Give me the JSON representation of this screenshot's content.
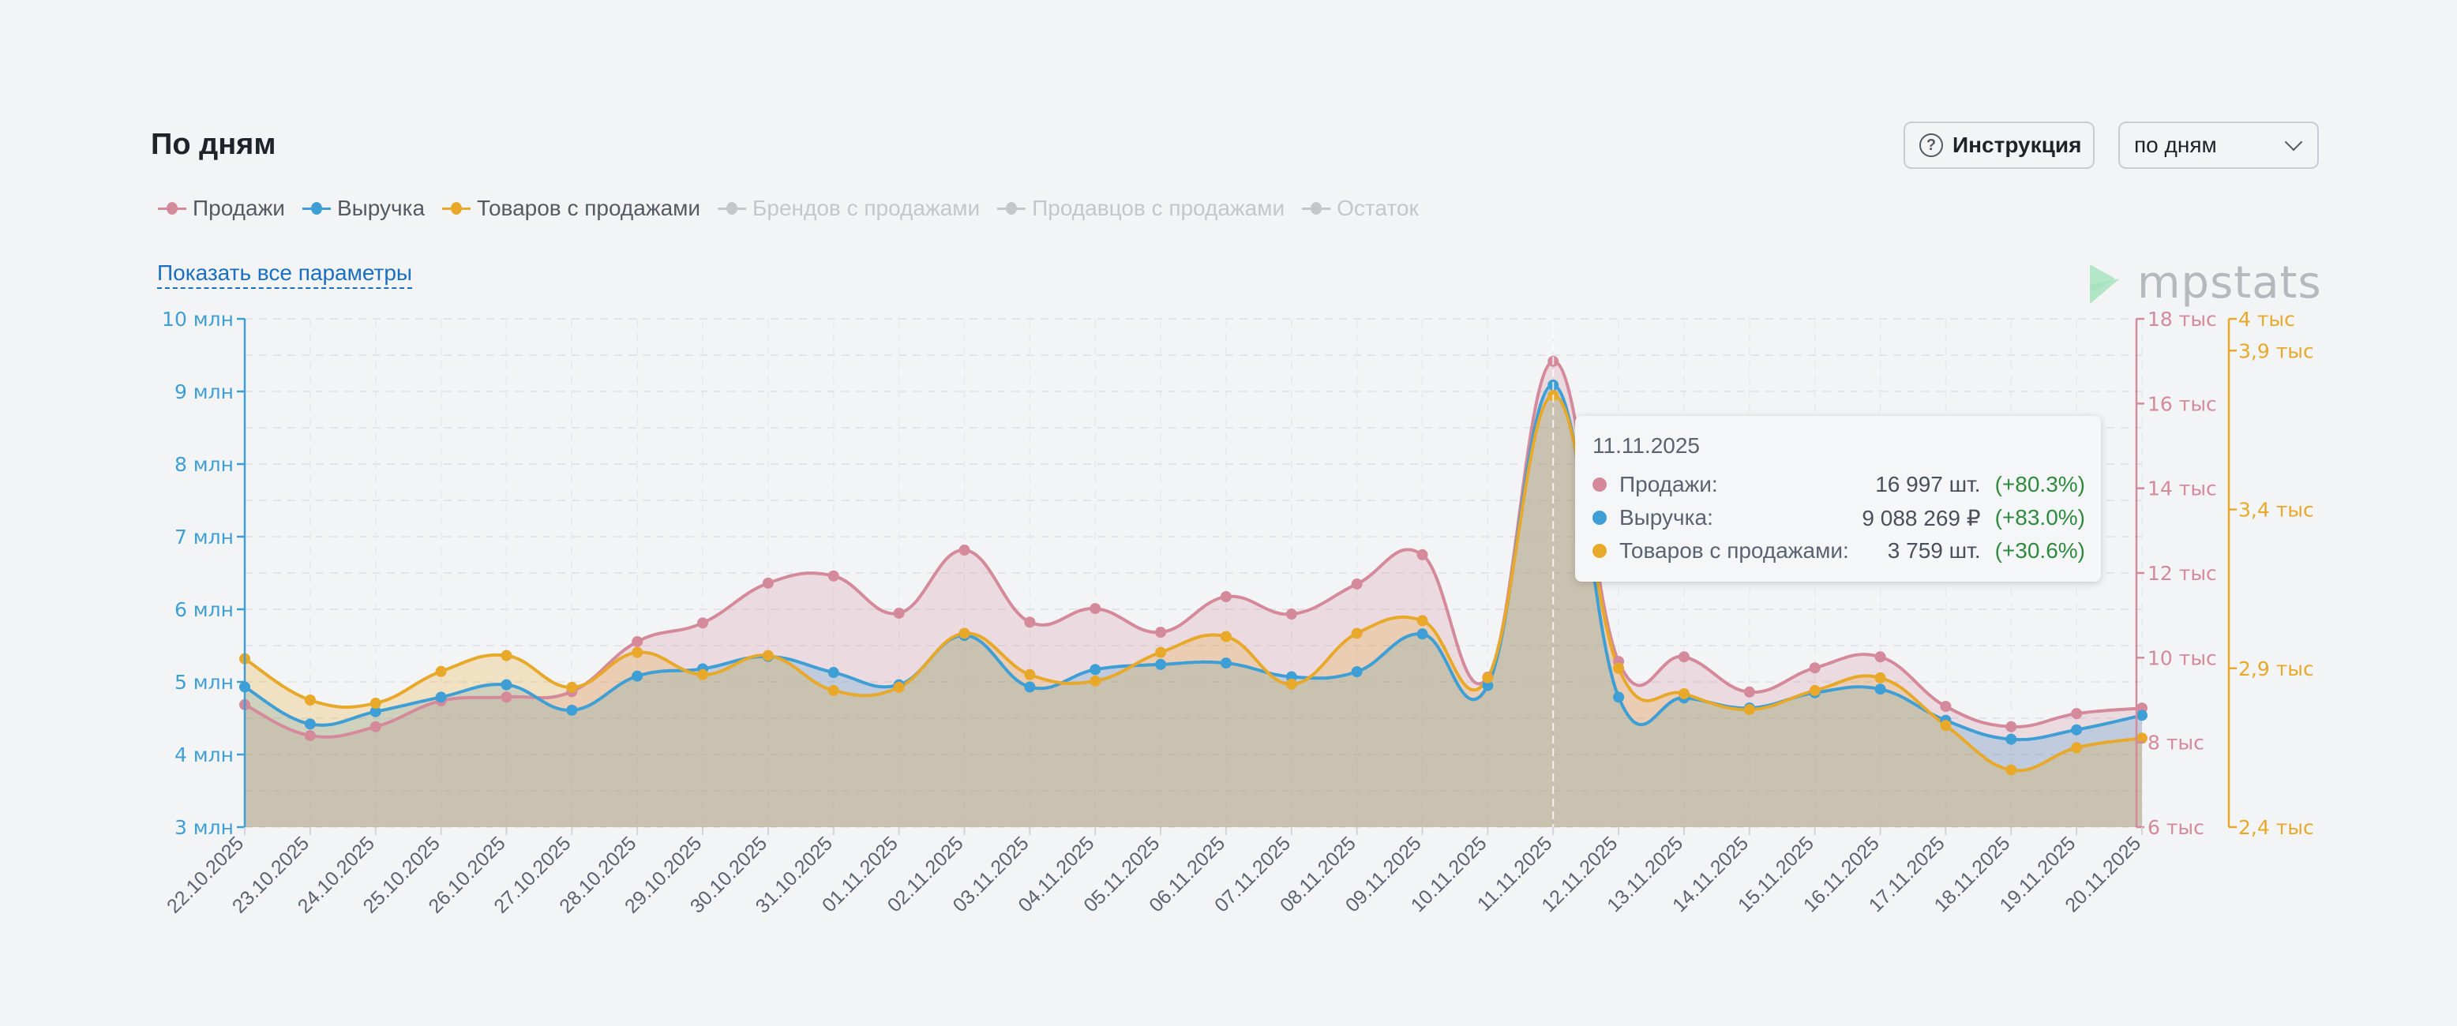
{
  "header": {
    "title": "По дням",
    "help_button": "Инструкция",
    "period_select": "по дням",
    "show_all_link": "Показать все параметры",
    "logo_text": "mpstats"
  },
  "legend": [
    {
      "label": "Продажи",
      "color": "#d48a9b",
      "active": true
    },
    {
      "label": "Выручка",
      "color": "#3e9fd6",
      "active": true
    },
    {
      "label": "Товаров с продажами",
      "color": "#e8a92a",
      "active": true
    },
    {
      "label": "Брендов с продажами",
      "color": "#c4c6ca",
      "active": false
    },
    {
      "label": "Продавцов с продажами",
      "color": "#c4c6ca",
      "active": false
    },
    {
      "label": "Остаток",
      "color": "#c4c6ca",
      "active": false
    }
  ],
  "tooltip": {
    "date": "11.11.2025",
    "rows": [
      {
        "name": "Продажи:",
        "value": "16 997 шт.",
        "change": "(+80.3%)",
        "color": "#d48a9b"
      },
      {
        "name": "Выручка:",
        "value": "9 088 269 ₽",
        "change": "(+83.0%)",
        "color": "#3e9fd6"
      },
      {
        "name": "Товаров с продажами:",
        "value": "3 759 шт.",
        "change": "(+30.6%)",
        "color": "#e8a92a"
      }
    ]
  },
  "chart_data": {
    "type": "area",
    "title": "По дням",
    "x": [
      "22.10.2025",
      "23.10.2025",
      "24.10.2025",
      "25.10.2025",
      "26.10.2025",
      "27.10.2025",
      "28.10.2025",
      "29.10.2025",
      "30.10.2025",
      "31.10.2025",
      "01.11.2025",
      "02.11.2025",
      "03.11.2025",
      "04.11.2025",
      "05.11.2025",
      "06.11.2025",
      "07.11.2025",
      "08.11.2025",
      "09.11.2025",
      "10.11.2025",
      "11.11.2025",
      "12.11.2025",
      "13.11.2025",
      "14.11.2025",
      "15.11.2025",
      "16.11.2025",
      "17.11.2025",
      "18.11.2025",
      "19.11.2025",
      "20.11.2025"
    ],
    "highlighted_x": "11.11.2025",
    "axes": [
      {
        "id": "revenue",
        "side": "left",
        "range": [
          3000000,
          10000000
        ],
        "ticks": [
          3,
          4,
          5,
          6,
          7,
          8,
          9,
          10
        ],
        "tick_labels": [
          "3 млн",
          "4 млн",
          "5 млн",
          "6 млн",
          "7 млн",
          "8 млн",
          "9 млн",
          "10 млн"
        ],
        "color": "#3e9fd6"
      },
      {
        "id": "sales",
        "side": "right",
        "range": [
          6000,
          18000
        ],
        "ticks": [
          6,
          8,
          10,
          12,
          14,
          16,
          18
        ],
        "tick_labels": [
          "6 тыс",
          "8 тыс",
          "10 тыс",
          "12 тыс",
          "14 тыс",
          "16 тыс",
          "18 тыс"
        ],
        "color": "#d48a9b"
      },
      {
        "id": "items",
        "side": "right-outer",
        "range": [
          2400,
          4000
        ],
        "ticks": [
          2.4,
          2.9,
          3.4,
          3.9,
          4.0
        ],
        "tick_labels": [
          "2,4 тыс",
          "2,9 тыс",
          "3,4 тыс",
          "3,9 тыс",
          "4 тыс"
        ],
        "color": "#e8a92a"
      }
    ],
    "series": [
      {
        "name": "Продажи",
        "axis": "sales",
        "unit": "шт.",
        "color": "#d48a9b",
        "fill": "rgba(212,138,155,0.25)",
        "values": [
          8890,
          8160,
          8370,
          8980,
          9070,
          9200,
          10380,
          10820,
          11760,
          11930,
          11050,
          12540,
          10840,
          11160,
          10600,
          11440,
          11030,
          11740,
          12430,
          9540,
          16997,
          9910,
          10020,
          9190,
          9760,
          10020,
          8850,
          8370,
          8680,
          8810
        ]
      },
      {
        "name": "Выручка",
        "axis": "revenue",
        "unit": "₽",
        "color": "#3e9fd6",
        "fill": "rgba(62,159,214,0.25)",
        "values": [
          4930000,
          4420000,
          4590000,
          4790000,
          4960000,
          4610000,
          5080000,
          5180000,
          5350000,
          5130000,
          4960000,
          5640000,
          4930000,
          5170000,
          5240000,
          5260000,
          5070000,
          5140000,
          5660000,
          4950000,
          9088269,
          4790000,
          4780000,
          4640000,
          4850000,
          4900000,
          4470000,
          4210000,
          4340000,
          4540000
        ]
      },
      {
        "name": "Товаров с продажами",
        "axis": "items",
        "unit": "шт.",
        "color": "#e8a92a",
        "fill": "rgba(232,169,42,0.25)",
        "values": [
          2930,
          2800,
          2790,
          2890,
          2940,
          2840,
          2950,
          2880,
          2940,
          2830,
          2840,
          3010,
          2880,
          2860,
          2950,
          3000,
          2850,
          3010,
          3050,
          2870,
          3759,
          2900,
          2820,
          2770,
          2830,
          2870,
          2720,
          2580,
          2650,
          2680
        ]
      }
    ],
    "grid": true,
    "legend_position": "top-left"
  }
}
